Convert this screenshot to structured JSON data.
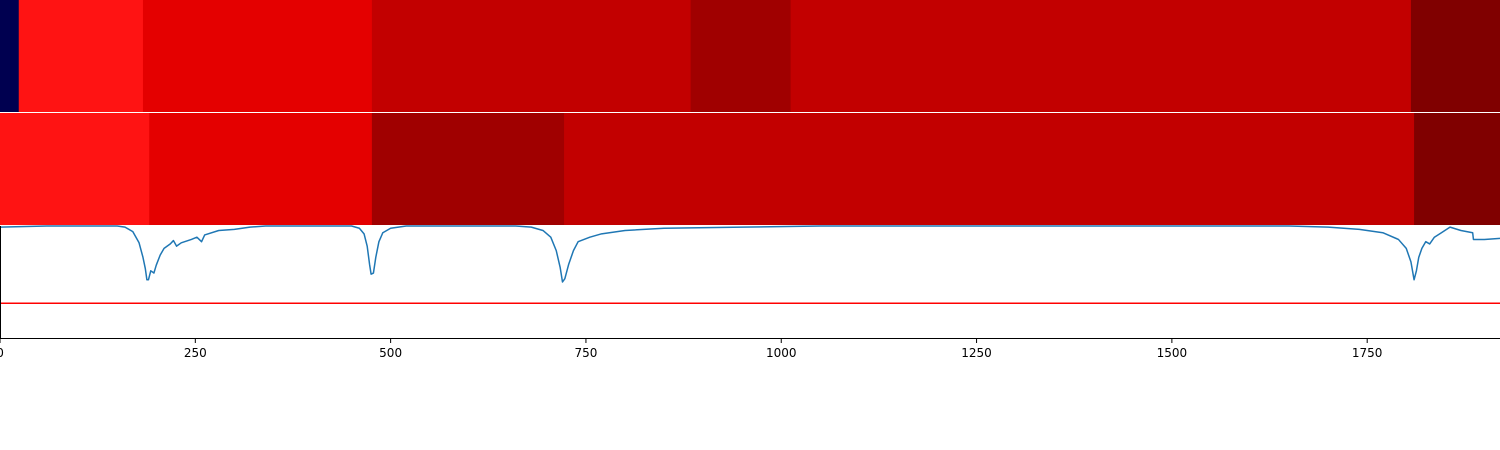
{
  "chart_data": [
    {
      "type": "heatmap",
      "xlim": [
        0,
        1920
      ],
      "segments": [
        {
          "start": 0,
          "end": 24,
          "color": "#000050"
        },
        {
          "start": 24,
          "end": 183,
          "color": "#ff1313"
        },
        {
          "start": 183,
          "end": 476,
          "color": "#e40000"
        },
        {
          "start": 476,
          "end": 884,
          "color": "#c20000"
        },
        {
          "start": 884,
          "end": 1012,
          "color": "#a00000"
        },
        {
          "start": 1012,
          "end": 1806,
          "color": "#c20000"
        },
        {
          "start": 1806,
          "end": 1920,
          "color": "#800000"
        }
      ]
    },
    {
      "type": "heatmap",
      "xlim": [
        0,
        1920
      ],
      "segments": [
        {
          "start": 0,
          "end": 191,
          "color": "#ff1313"
        },
        {
          "start": 191,
          "end": 476,
          "color": "#e40000"
        },
        {
          "start": 476,
          "end": 722,
          "color": "#a00000"
        },
        {
          "start": 722,
          "end": 1810,
          "color": "#c20000"
        },
        {
          "start": 1810,
          "end": 1920,
          "color": "#800000"
        }
      ]
    },
    {
      "type": "line",
      "xlim": [
        0,
        1920
      ],
      "ylim": [
        0,
        1
      ],
      "xticks": [
        0,
        250,
        500,
        750,
        1000,
        1250,
        1500,
        1750
      ],
      "series": [
        {
          "color": "#1f77b4",
          "points": [
            [
              0,
              0.99
            ],
            [
              60,
              1.0
            ],
            [
              150,
              1.0
            ],
            [
              160,
              0.99
            ],
            [
              170,
              0.95
            ],
            [
              178,
              0.85
            ],
            [
              183,
              0.72
            ],
            [
              186,
              0.62
            ],
            [
              188,
              0.52
            ],
            [
              190,
              0.52
            ],
            [
              193,
              0.6
            ],
            [
              197,
              0.58
            ],
            [
              200,
              0.65
            ],
            [
              205,
              0.74
            ],
            [
              210,
              0.8
            ],
            [
              218,
              0.84
            ],
            [
              222,
              0.87
            ],
            [
              226,
              0.82
            ],
            [
              232,
              0.85
            ],
            [
              245,
              0.88
            ],
            [
              252,
              0.9
            ],
            [
              258,
              0.86
            ],
            [
              262,
              0.92
            ],
            [
              280,
              0.96
            ],
            [
              300,
              0.97
            ],
            [
              320,
              0.99
            ],
            [
              340,
              1.0
            ],
            [
              450,
              1.0
            ],
            [
              460,
              0.98
            ],
            [
              466,
              0.93
            ],
            [
              470,
              0.82
            ],
            [
              473,
              0.66
            ],
            [
              475,
              0.57
            ],
            [
              478,
              0.58
            ],
            [
              481,
              0.72
            ],
            [
              485,
              0.86
            ],
            [
              490,
              0.94
            ],
            [
              500,
              0.98
            ],
            [
              520,
              1.0
            ],
            [
              660,
              1.0
            ],
            [
              680,
              0.99
            ],
            [
              695,
              0.96
            ],
            [
              705,
              0.9
            ],
            [
              712,
              0.78
            ],
            [
              717,
              0.63
            ],
            [
              720,
              0.5
            ],
            [
              723,
              0.53
            ],
            [
              728,
              0.66
            ],
            [
              734,
              0.78
            ],
            [
              740,
              0.86
            ],
            [
              755,
              0.9
            ],
            [
              770,
              0.93
            ],
            [
              800,
              0.96
            ],
            [
              850,
              0.98
            ],
            [
              950,
              0.99
            ],
            [
              1050,
              1.0
            ],
            [
              1650,
              1.0
            ],
            [
              1700,
              0.99
            ],
            [
              1740,
              0.97
            ],
            [
              1770,
              0.94
            ],
            [
              1790,
              0.88
            ],
            [
              1800,
              0.8
            ],
            [
              1806,
              0.68
            ],
            [
              1808,
              0.6
            ],
            [
              1810,
              0.52
            ],
            [
              1813,
              0.6
            ],
            [
              1816,
              0.72
            ],
            [
              1820,
              0.8
            ],
            [
              1825,
              0.86
            ],
            [
              1830,
              0.84
            ],
            [
              1836,
              0.9
            ],
            [
              1845,
              0.94
            ],
            [
              1856,
              0.99
            ],
            [
              1870,
              0.96
            ],
            [
              1885,
              0.94
            ],
            [
              1886,
              0.88
            ],
            [
              1900,
              0.88
            ],
            [
              1920,
              0.89
            ]
          ]
        },
        {
          "color": "#ff0000",
          "points": [
            [
              0,
              0.31
            ],
            [
              1920,
              0.31
            ]
          ]
        }
      ]
    }
  ]
}
